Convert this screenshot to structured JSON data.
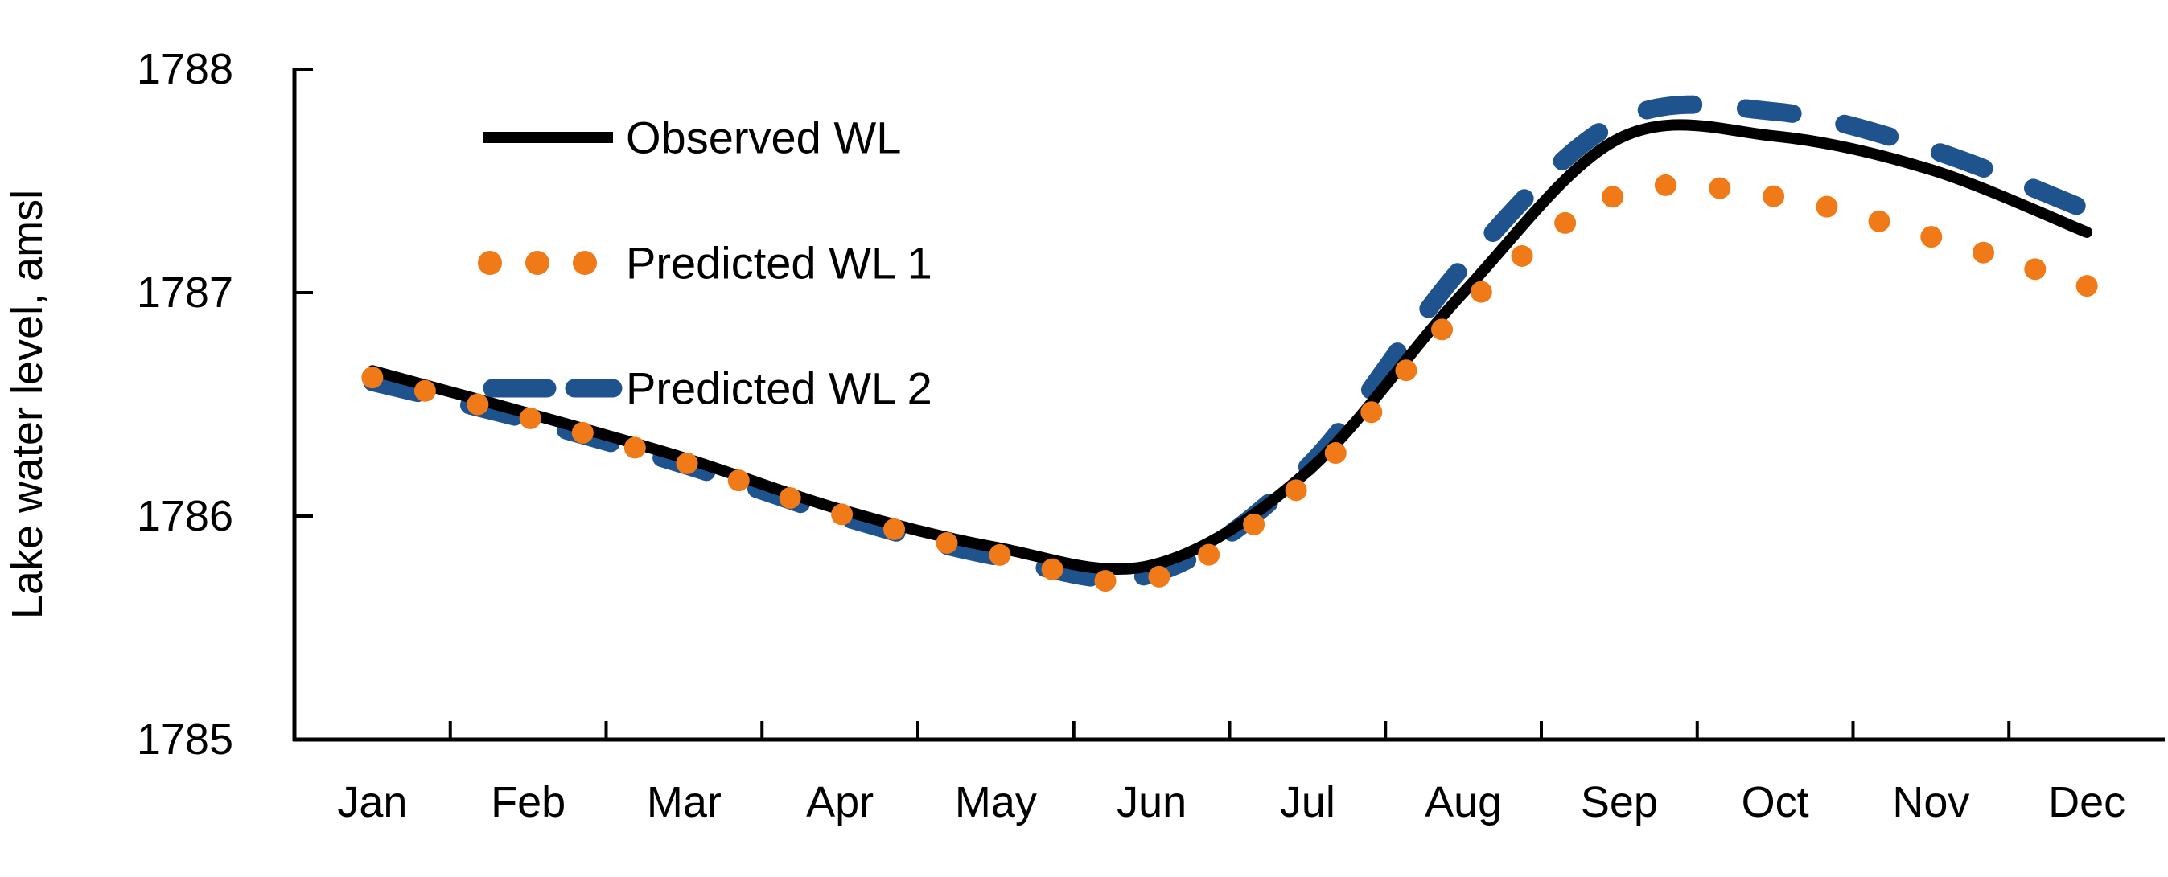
{
  "chart": {
    "y_axis_title": "Lake water level, amsl",
    "legend_items": [
      "Observed WL",
      "Predicted WL 1",
      "Predicted WL 2"
    ]
  },
  "chart_data": {
    "type": "line",
    "title": "",
    "xlabel": "",
    "ylabel": "Lake water level, amsl",
    "ylim": [
      1785,
      1788
    ],
    "y_ticks": [
      1785,
      1786,
      1787,
      1788
    ],
    "grid": false,
    "legend_position": "upper-left",
    "categories": [
      "Jan",
      "Feb",
      "Mar",
      "Apr",
      "May",
      "Jun",
      "Jul",
      "Aug",
      "Sep",
      "Oct",
      "Nov",
      "Dec"
    ],
    "series": [
      {
        "name": "Observed WL",
        "style": "solid",
        "color": "#000000",
        "line_width": 14,
        "values": [
          1786.65,
          1786.46,
          1786.26,
          1786.03,
          1785.86,
          1785.78,
          1786.2,
          1787.0,
          1787.69,
          1787.7,
          1787.55,
          1787.27
        ]
      },
      {
        "name": "Predicted WL 1",
        "style": "dots",
        "color": "#F17A18",
        "marker_radius": 13.5,
        "num_markers": 36,
        "values": [
          1786.62,
          1786.44,
          1786.24,
          1786.01,
          1785.83,
          1785.72,
          1786.16,
          1786.93,
          1787.44,
          1787.43,
          1787.25,
          1787.03
        ]
      },
      {
        "name": "Predicted WL 2",
        "style": "dashed",
        "color": "#1F538D",
        "line_width": 23,
        "values": [
          1786.6,
          1786.43,
          1786.23,
          1786.0,
          1785.82,
          1785.74,
          1786.22,
          1787.12,
          1787.77,
          1787.81,
          1787.64,
          1787.37
        ]
      }
    ]
  },
  "colors": {
    "background": "#FFFFFF",
    "axis": "#000000",
    "observed": "#000000",
    "predicted1": "#F17A18",
    "predicted2": "#1F538D"
  }
}
